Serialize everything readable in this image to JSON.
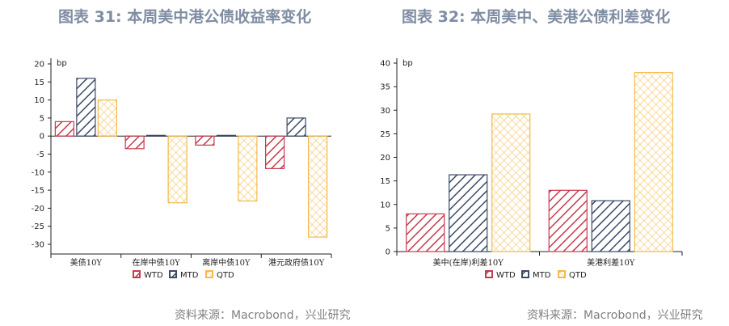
{
  "colors": {
    "wtd": "#c8394f",
    "mtd": "#3b4a66",
    "qtd": "#f3b94a"
  },
  "left": {
    "title": "图表 31: 本周美中港公债收益率变化",
    "source": "资料来源：Macrobond，兴业研究",
    "chart_data": {
      "type": "bar",
      "unit_label": "bp",
      "ylim": [
        -30,
        20
      ],
      "yticks": [
        20,
        15,
        10,
        5,
        0,
        -5,
        -10,
        -15,
        -20,
        -25,
        -30
      ],
      "categories": [
        "美债10Y",
        "在岸中债10Y",
        "离岸中债10Y",
        "港元政府债10Y"
      ],
      "series": [
        {
          "name": "WTD",
          "values": [
            4,
            -3.5,
            -2.5,
            -9
          ]
        },
        {
          "name": "MTD",
          "values": [
            16,
            0.2,
            0.2,
            5
          ]
        },
        {
          "name": "QTD",
          "values": [
            10,
            -18.5,
            -18,
            -28
          ]
        }
      ],
      "legend_position": "bottom"
    }
  },
  "right": {
    "title": "图表 32: 本周美中、美港公债利差变化",
    "source": "资料来源：Macrobond，兴业研究",
    "chart_data": {
      "type": "bar",
      "unit_label": "bp",
      "ylim": [
        0,
        40
      ],
      "yticks": [
        40,
        35,
        30,
        25,
        20,
        15,
        10,
        5,
        0
      ],
      "categories": [
        "美中(在岸)利差10Y",
        "美港利差10Y"
      ],
      "series": [
        {
          "name": "WTD",
          "values": [
            8,
            13
          ]
        },
        {
          "name": "MTD",
          "values": [
            16.3,
            10.8
          ]
        },
        {
          "name": "QTD",
          "values": [
            29.2,
            38
          ]
        }
      ],
      "legend_position": "bottom"
    }
  }
}
